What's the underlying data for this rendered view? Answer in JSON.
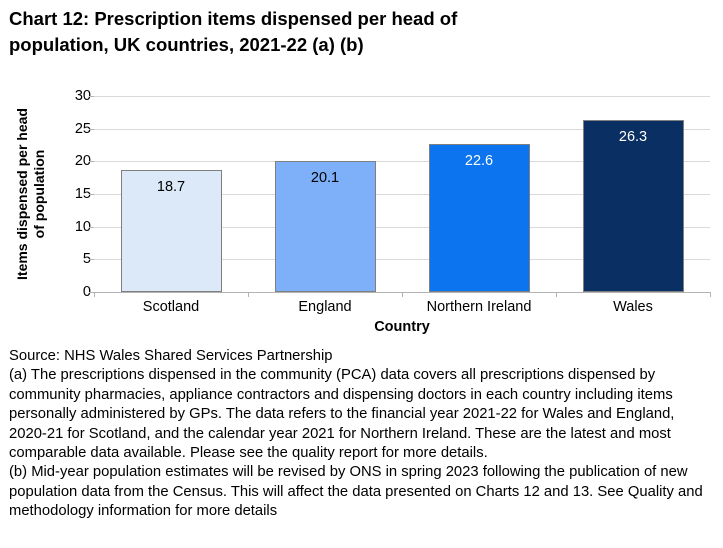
{
  "title": {
    "lines": [
      "Chart 12: Prescription items dispensed per head of",
      "population, UK countries, 2021-22 (a) (b)"
    ]
  },
  "chart_data": {
    "type": "bar",
    "title": "Chart 12: Prescription items dispensed per head of population, UK countries, 2021-22 (a) (b)",
    "categories": [
      "Scotland",
      "England",
      "Northern Ireland",
      "Wales"
    ],
    "values": [
      18.7,
      20.1,
      22.6,
      26.3
    ],
    "value_labels": [
      "18.7",
      "20.1",
      "22.6",
      "26.3"
    ],
    "bar_colors": [
      "#dce9f8",
      "#7db0f8",
      "#0b74ee",
      "#0a2f63"
    ],
    "value_label_colors": [
      "#000000",
      "#000000",
      "#ffffff",
      "#ffffff"
    ],
    "xlabel": "Country",
    "ylabel": "Items dispensed per head of population",
    "ylabel_lines": [
      "Items dispensed per head",
      "of population"
    ],
    "ylim": [
      0,
      30
    ],
    "yticks": [
      0,
      5,
      10,
      15,
      20,
      25,
      30
    ],
    "grid": true,
    "legend": false,
    "gridline_color": "#d9d9d9",
    "axis_color": "#b3b3b3",
    "bar_border_color": "#7f7f7f"
  },
  "footer": {
    "source": "Source: NHS Wales Shared Services Partnership",
    "note_a": "(a) The prescriptions dispensed in the community (PCA) data covers all prescriptions dispensed by community pharmacies, appliance contractors and dispensing doctors in each country including items personally administered by GPs. The data refers to the financial year 2021-22 for Wales and England, 2020-21 for Scotland, and the calendar year 2021 for Northern Ireland. These are the latest and most comparable data available. Please see the quality report for more details.",
    "note_b": "(b) Mid-year population estimates will be revised by ONS in spring 2023 following the publication of new population data from the Census. This will affect the data presented on Charts 12 and 13. See Quality and methodology information for more details"
  }
}
